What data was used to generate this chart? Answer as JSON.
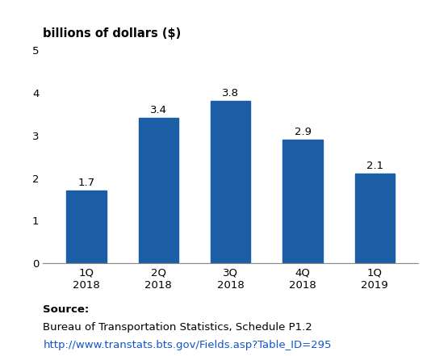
{
  "categories": [
    "1Q\n2018",
    "2Q\n2018",
    "3Q\n2018",
    "4Q\n2018",
    "1Q\n2019"
  ],
  "values": [
    1.7,
    3.4,
    3.8,
    2.9,
    2.1
  ],
  "bar_color": "#1B5EA6",
  "ylabel": "billions of dollars ($)",
  "ylim": [
    0,
    5
  ],
  "yticks": [
    0,
    1,
    2,
    3,
    4,
    5
  ],
  "bar_width": 0.55,
  "value_labels": [
    "1.7",
    "3.4",
    "3.8",
    "2.9",
    "2.1"
  ],
  "source_label": "Source:",
  "source_line1": "Bureau of Transportation Statistics, Schedule P1.2",
  "source_url": "http://www.transtats.bts.gov/Fields.asp?Table_ID=295",
  "label_fontsize": 9.5,
  "tick_fontsize": 9.5,
  "ylabel_fontsize": 10.5,
  "source_fontsize": 9.5,
  "background_color": "#ffffff"
}
